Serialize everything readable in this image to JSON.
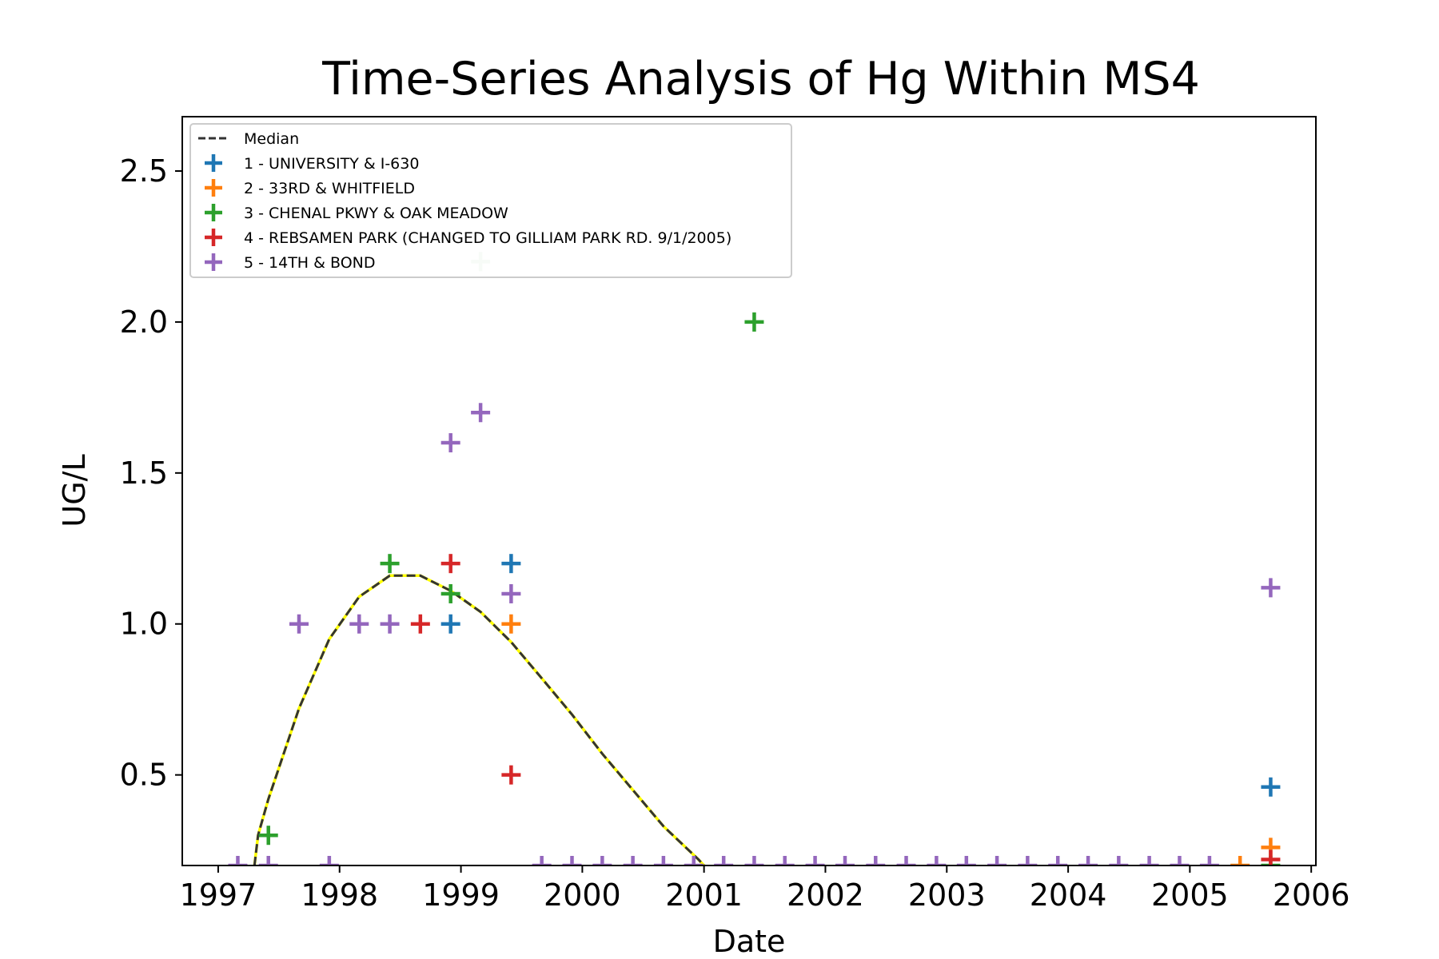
{
  "chart_data": {
    "type": "scatter",
    "title": "Time-Series Analysis of Hg Within MS4",
    "xlabel": "Date",
    "ylabel": "UG/L",
    "x_type": "date",
    "xlim": [
      "1996-09-15",
      "2006-01-15"
    ],
    "ylim": [
      0.2,
      2.68
    ],
    "x_ticks": [
      "1997",
      "1998",
      "1999",
      "2000",
      "2001",
      "2002",
      "2003",
      "2004",
      "2005",
      "2006"
    ],
    "x_tick_dates": [
      "1997-01-01",
      "1998-01-01",
      "1999-01-01",
      "2000-01-01",
      "2001-01-01",
      "2002-01-01",
      "2003-01-01",
      "2004-01-01",
      "2005-01-01",
      "2006-01-01"
    ],
    "y_ticks": [
      "0.5",
      "1.0",
      "1.5",
      "2.0",
      "2.5"
    ],
    "y_tick_values": [
      0.5,
      1.0,
      1.5,
      2.0,
      2.5
    ],
    "grid": false,
    "legend_position": "top-left",
    "median": {
      "name": "Median",
      "color": "#333333",
      "highlight_color": "#ffff00",
      "points": [
        [
          "1997-04-20",
          0.2
        ],
        [
          "1997-05-01",
          0.3
        ],
        [
          "1997-06-01",
          0.42
        ],
        [
          "1997-09-01",
          0.72
        ],
        [
          "1997-12-01",
          0.95
        ],
        [
          "1998-03-01",
          1.09
        ],
        [
          "1998-06-01",
          1.16
        ],
        [
          "1998-09-01",
          1.16
        ],
        [
          "1998-12-01",
          1.11
        ],
        [
          "1999-03-01",
          1.04
        ],
        [
          "1999-06-01",
          0.94
        ],
        [
          "1999-09-01",
          0.82
        ],
        [
          "1999-12-01",
          0.7
        ],
        [
          "2000-03-01",
          0.57
        ],
        [
          "2000-06-01",
          0.45
        ],
        [
          "2000-09-01",
          0.33
        ],
        [
          "2000-12-15",
          0.22
        ],
        [
          "2001-01-01",
          0.2
        ]
      ]
    },
    "series": [
      {
        "name": "1 - UNIVERSITY & I-630",
        "color": "#1f77b4",
        "points": [
          [
            "1998-12-01",
            1.0
          ],
          [
            "1999-06-01",
            1.2
          ],
          [
            "2005-09-01",
            0.46
          ]
        ]
      },
      {
        "name": "2 - 33RD & WHITFIELD",
        "color": "#ff7f0e",
        "points": [
          [
            "1999-06-01",
            1.0
          ],
          [
            "2005-06-01",
            0.2
          ],
          [
            "2005-09-01",
            0.26
          ]
        ]
      },
      {
        "name": "3 - CHENAL PKWY & OAK MEADOW",
        "color": "#2ca02c",
        "points": [
          [
            "1997-06-01",
            0.3
          ],
          [
            "1998-06-01",
            1.2
          ],
          [
            "1998-12-01",
            1.1
          ],
          [
            "2001-06-01",
            2.0
          ],
          [
            "2005-09-01",
            0.2
          ]
        ]
      },
      {
        "name": "4 - REBSAMEN PARK (CHANGED TO GILLIAM PARK RD. 9/1/2005)",
        "color": "#d62728",
        "points": [
          [
            "1998-09-01",
            1.0
          ],
          [
            "1998-12-01",
            1.2
          ],
          [
            "1999-06-01",
            0.5
          ],
          [
            "2005-09-01",
            0.22
          ]
        ]
      },
      {
        "name": "5 - 14TH & BOND",
        "color": "#9467bd",
        "points": [
          [
            "1997-03-01",
            0.2
          ],
          [
            "1997-06-01",
            0.2
          ],
          [
            "1997-09-01",
            1.0
          ],
          [
            "1997-12-01",
            0.2
          ],
          [
            "1998-03-01",
            1.0
          ],
          [
            "1998-06-01",
            1.0
          ],
          [
            "1998-12-01",
            1.6
          ],
          [
            "1999-03-01",
            1.7
          ],
          [
            "1999-06-01",
            1.1
          ],
          [
            "1999-09-01",
            0.2
          ],
          [
            "1999-12-01",
            0.2
          ],
          [
            "2000-03-01",
            0.2
          ],
          [
            "2000-06-01",
            0.2
          ],
          [
            "2000-09-01",
            0.2
          ],
          [
            "2000-12-01",
            0.2
          ],
          [
            "2001-03-01",
            0.2
          ],
          [
            "2001-06-01",
            0.2
          ],
          [
            "2001-09-01",
            0.2
          ],
          [
            "2001-12-01",
            0.2
          ],
          [
            "2002-03-01",
            0.2
          ],
          [
            "2002-06-01",
            0.2
          ],
          [
            "2002-09-01",
            0.2
          ],
          [
            "2002-12-01",
            0.2
          ],
          [
            "2003-03-01",
            0.2
          ],
          [
            "2003-06-01",
            0.2
          ],
          [
            "2003-09-01",
            0.2
          ],
          [
            "2003-12-01",
            0.2
          ],
          [
            "2004-03-01",
            0.2
          ],
          [
            "2004-06-01",
            0.2
          ],
          [
            "2004-09-01",
            0.2
          ],
          [
            "2004-12-01",
            0.2
          ],
          [
            "2005-03-01",
            0.2
          ],
          [
            "2005-09-01",
            1.12
          ]
        ]
      }
    ],
    "faint_points": [
      {
        "color": "#d8ecd8",
        "date": "1999-03-01",
        "value": 2.2
      }
    ]
  }
}
